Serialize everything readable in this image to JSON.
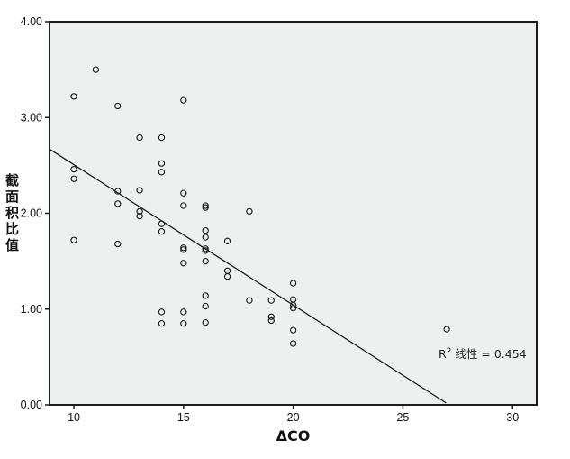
{
  "figure": {
    "background": "#ffffff",
    "plot_background": "#edf0ef",
    "axis_color": "#1c1c1c",
    "marker_color": "#1c1c1c",
    "fit_line_color": "#1c1c1c",
    "tick_label_color": "#111111"
  },
  "chart_data": {
    "type": "scatter",
    "title": "",
    "xlabel": "ΔCO",
    "ylabel": "截面积比值",
    "xlim": [
      8.89,
      31.1
    ],
    "ylim": [
      0,
      4
    ],
    "grid": false,
    "legend": null,
    "x_ticks": {
      "values": [
        10,
        15,
        20,
        25,
        30
      ],
      "labels": [
        "10",
        "15",
        "20",
        "25",
        "30"
      ]
    },
    "y_ticks": {
      "values": [
        0,
        1,
        2,
        3,
        4
      ],
      "labels": [
        "0.00",
        "1.00",
        "2.00",
        "3.00",
        "4.00"
      ]
    },
    "points": [
      [
        10,
        3.22
      ],
      [
        11,
        3.5
      ],
      [
        12,
        3.12
      ],
      [
        15,
        3.18
      ],
      [
        13,
        2.79
      ],
      [
        14,
        2.79
      ],
      [
        14,
        2.52
      ],
      [
        10,
        2.46
      ],
      [
        10,
        2.36
      ],
      [
        14,
        2.43
      ],
      [
        12,
        2.23
      ],
      [
        13,
        2.24
      ],
      [
        12,
        2.1
      ],
      [
        15,
        2.21
      ],
      [
        15,
        2.08
      ],
      [
        16,
        2.08
      ],
      [
        16,
        2.06
      ],
      [
        18,
        2.02
      ],
      [
        13,
        2.02
      ],
      [
        13,
        1.97
      ],
      [
        14,
        1.89
      ],
      [
        14,
        1.81
      ],
      [
        10,
        1.72
      ],
      [
        12,
        1.68
      ],
      [
        16,
        1.82
      ],
      [
        16,
        1.75
      ],
      [
        17,
        1.71
      ],
      [
        15,
        1.64
      ],
      [
        15,
        1.62
      ],
      [
        16,
        1.63
      ],
      [
        16,
        1.61
      ],
      [
        15,
        1.48
      ],
      [
        16,
        1.5
      ],
      [
        17,
        1.4
      ],
      [
        17,
        1.34
      ],
      [
        16,
        1.14
      ],
      [
        20,
        1.27
      ],
      [
        18,
        1.09
      ],
      [
        19,
        1.09
      ],
      [
        20,
        1.1
      ],
      [
        20,
        1.04
      ],
      [
        20,
        1.01
      ],
      [
        19,
        0.92
      ],
      [
        19,
        0.88
      ],
      [
        14,
        0.97
      ],
      [
        15,
        0.97
      ],
      [
        16,
        1.03
      ],
      [
        14,
        0.85
      ],
      [
        15,
        0.85
      ],
      [
        16,
        0.86
      ],
      [
        20,
        0.78
      ],
      [
        20,
        0.64
      ],
      [
        27,
        0.79
      ]
    ],
    "fit_line": {
      "x1": 8.89,
      "y1": 2.67,
      "x2": 26.97,
      "y2": 0.02
    },
    "annotation": {
      "text": "R² 线性 = 0.454",
      "prefix": "R",
      "sup": "2",
      "suffix": " 线性 = 0.454"
    }
  }
}
